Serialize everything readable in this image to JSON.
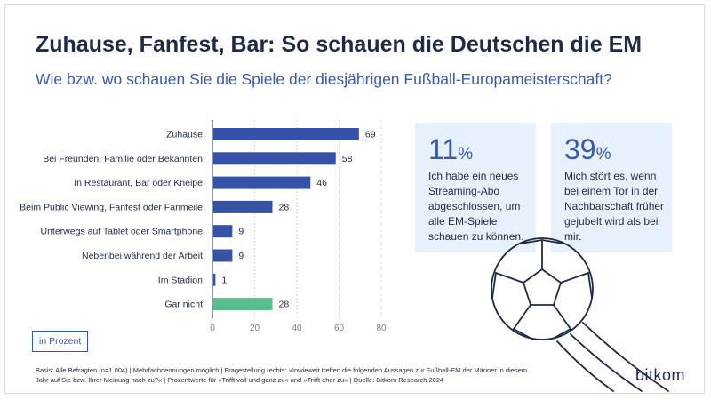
{
  "title": "Zuhause, Fanfest, Bar: So schauen die Deutschen die EM",
  "subtitle": "Wie bzw. wo schauen Sie die Spiele der diesjährigen Fußball-Europameisterschaft?",
  "chart_data": {
    "type": "bar",
    "orientation": "horizontal",
    "categories": [
      "Zuhause",
      "Bei Freunden, Familie oder Bekannten",
      "In Restaurant, Bar oder Kneipe",
      "Beim Public Viewing, Fanfest oder Fanmeile",
      "Unterwegs auf Tablet oder Smartphone",
      "Nebenbei während der Arbeit",
      "Im Stadion",
      "Gar nicht"
    ],
    "values": [
      69,
      58,
      46,
      28,
      9,
      9,
      1,
      28
    ],
    "bar_colors": [
      "#3652a6",
      "#3652a6",
      "#3652a6",
      "#3652a6",
      "#3652a6",
      "#3652a6",
      "#3652a6",
      "#5bbf8c"
    ],
    "xlim": [
      0,
      80
    ],
    "xticks": [
      "0",
      "20",
      "40",
      "60",
      "80"
    ],
    "grid": true,
    "unit_label": "in Prozent"
  },
  "stats": [
    {
      "value": "11",
      "unit": "%",
      "text": "Ich habe ein neues Streaming-Abo abgeschlossen, um alle EM-Spiele schauen zu können."
    },
    {
      "value": "39",
      "unit": "%",
      "text": "Mich stört es, wenn bei einem Tor in der Nachbarschaft früher gejubelt wird als bei mir."
    }
  ],
  "footnote": "Basis: Alle Befragten (n=1.004) | Mehrfachnennungen möglich | Fragestellung rechts: »Inwieweit treffen die folgenden Aussagen zur Fußball-EM der Männer in diesem Jahr auf Sie bzw. Ihrer Meinung nach zu?« | Prozentwerte für »Trifft voll und ganz zu« und »Trifft eher zu« | Quelle: Bitkom Research 2024",
  "logo": "bitkom",
  "colors": {
    "bar": "#3652a6",
    "bar_highlight": "#5bbf8c",
    "title": "#1f2a44",
    "accent": "#3a5aa8",
    "card": "#e7f1fb"
  },
  "icons": [
    "football-icon"
  ]
}
